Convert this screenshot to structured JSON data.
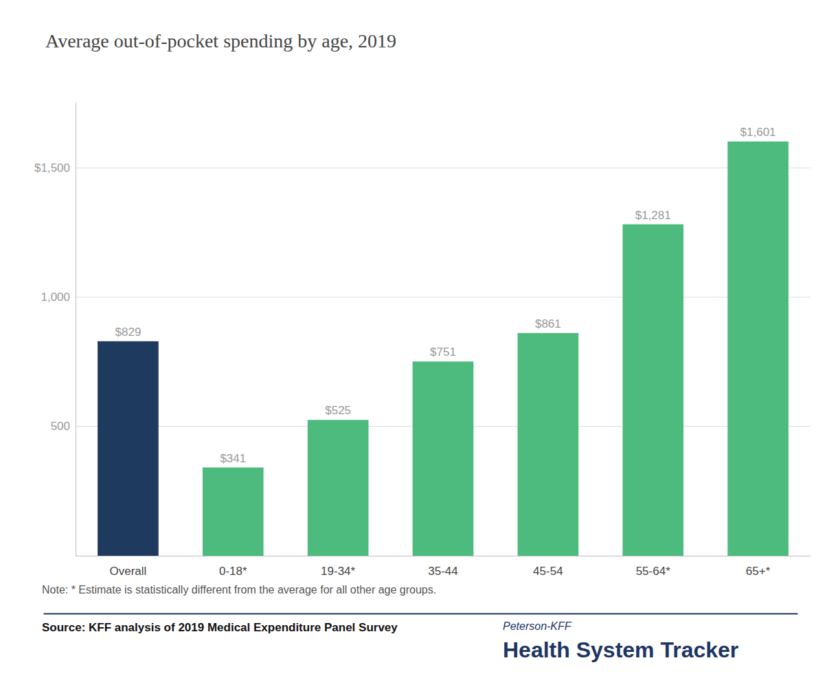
{
  "chart_data": {
    "type": "bar",
    "title": "Average out-of-pocket spending by age, 2019",
    "categories": [
      "Overall",
      "0-18*",
      "19-34*",
      "35-44",
      "45-54",
      "55-64*",
      "65+*"
    ],
    "values": [
      829,
      341,
      525,
      751,
      861,
      1281,
      1601
    ],
    "value_labels": [
      "$829",
      "$341",
      "$525",
      "$751",
      "$861",
      "$1,281",
      "$1,601"
    ],
    "data_labels": true,
    "colors": [
      "#1e3a5f",
      "#4dbb7e",
      "#4dbb7e",
      "#4dbb7e",
      "#4dbb7e",
      "#4dbb7e",
      "#4dbb7e"
    ],
    "ylim": [
      0,
      1750
    ],
    "yticks": [
      500,
      {
        "value": 1000,
        "label": "1,000"
      },
      {
        "value": 1500,
        "label": "$1,500"
      }
    ],
    "grid": true,
    "annotations": [
      "Note: * Estimate is statistically different from the average for all other age groups.",
      "Source: KFF analysis of 2019 Medical Expenditure Panel Survey",
      "Peterson-KFF",
      "Health System Tracker"
    ]
  }
}
